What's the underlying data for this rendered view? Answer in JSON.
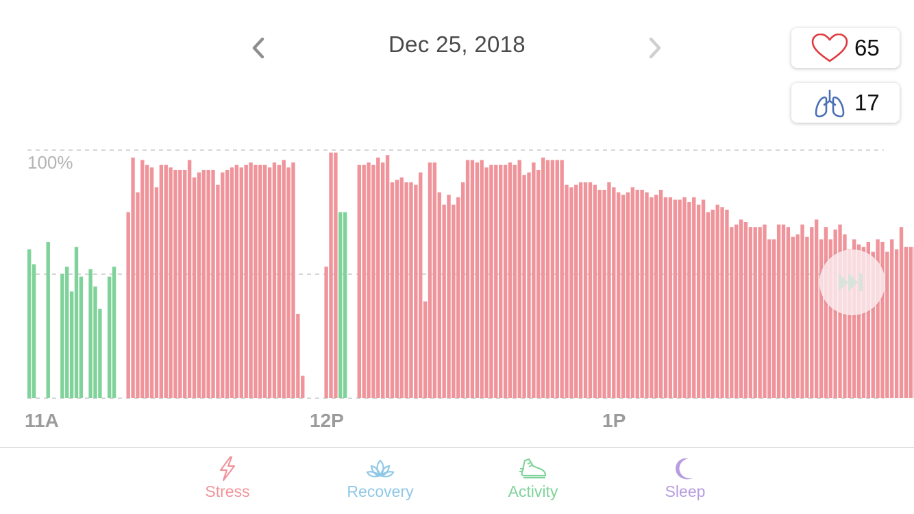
{
  "header": {
    "date": "Dec 25, 2018"
  },
  "metrics": {
    "heart_rate": {
      "icon": "heart-icon",
      "value": "65",
      "color": "#e0393e"
    },
    "breathing": {
      "icon": "lungs-icon",
      "value": "17",
      "color": "#4a6fb5"
    }
  },
  "chart_data": {
    "type": "bar",
    "y_max_label": "100%",
    "x_tick_labels": [
      {
        "label": "11A",
        "index": 0
      },
      {
        "label": "12P",
        "index": 62
      },
      {
        "label": "1P",
        "index": 124
      }
    ],
    "grid": true,
    "ylim": [
      0,
      100
    ],
    "colors": {
      "stress": "#f0949b",
      "calm": "#7fd39a"
    },
    "bars": [
      {
        "v": 60,
        "s": "calm"
      },
      {
        "v": 54,
        "s": "calm"
      },
      {
        "v": 0,
        "s": "none"
      },
      {
        "v": 0,
        "s": "none"
      },
      {
        "v": 63,
        "s": "calm"
      },
      {
        "v": 0,
        "s": "none"
      },
      {
        "v": 0,
        "s": "none"
      },
      {
        "v": 50,
        "s": "calm"
      },
      {
        "v": 53,
        "s": "calm"
      },
      {
        "v": 43,
        "s": "calm"
      },
      {
        "v": 61,
        "s": "calm"
      },
      {
        "v": 49,
        "s": "calm"
      },
      {
        "v": 0,
        "s": "none"
      },
      {
        "v": 52,
        "s": "calm"
      },
      {
        "v": 45,
        "s": "calm"
      },
      {
        "v": 36,
        "s": "calm"
      },
      {
        "v": 0,
        "s": "none"
      },
      {
        "v": 49,
        "s": "calm"
      },
      {
        "v": 53,
        "s": "calm"
      },
      {
        "v": 0,
        "s": "none"
      },
      {
        "v": 0,
        "s": "none"
      },
      {
        "v": 75,
        "s": "stress"
      },
      {
        "v": 97,
        "s": "stress"
      },
      {
        "v": 83,
        "s": "stress"
      },
      {
        "v": 96,
        "s": "stress"
      },
      {
        "v": 94,
        "s": "stress"
      },
      {
        "v": 93,
        "s": "stress"
      },
      {
        "v": 85,
        "s": "stress"
      },
      {
        "v": 94,
        "s": "stress"
      },
      {
        "v": 94,
        "s": "stress"
      },
      {
        "v": 93,
        "s": "stress"
      },
      {
        "v": 92,
        "s": "stress"
      },
      {
        "v": 92,
        "s": "stress"
      },
      {
        "v": 92,
        "s": "stress"
      },
      {
        "v": 96,
        "s": "stress"
      },
      {
        "v": 89,
        "s": "stress"
      },
      {
        "v": 91,
        "s": "stress"
      },
      {
        "v": 92,
        "s": "stress"
      },
      {
        "v": 92,
        "s": "stress"
      },
      {
        "v": 92,
        "s": "stress"
      },
      {
        "v": 86,
        "s": "stress"
      },
      {
        "v": 91,
        "s": "stress"
      },
      {
        "v": 92,
        "s": "stress"
      },
      {
        "v": 93,
        "s": "stress"
      },
      {
        "v": 94,
        "s": "stress"
      },
      {
        "v": 93,
        "s": "stress"
      },
      {
        "v": 94,
        "s": "stress"
      },
      {
        "v": 95,
        "s": "stress"
      },
      {
        "v": 94,
        "s": "stress"
      },
      {
        "v": 94,
        "s": "stress"
      },
      {
        "v": 94,
        "s": "stress"
      },
      {
        "v": 93,
        "s": "stress"
      },
      {
        "v": 95,
        "s": "stress"
      },
      {
        "v": 94,
        "s": "stress"
      },
      {
        "v": 96,
        "s": "stress"
      },
      {
        "v": 93,
        "s": "stress"
      },
      {
        "v": 95,
        "s": "stress"
      },
      {
        "v": 34,
        "s": "stress"
      },
      {
        "v": 9,
        "s": "stress"
      },
      {
        "v": 0,
        "s": "none"
      },
      {
        "v": 0,
        "s": "none"
      },
      {
        "v": 0,
        "s": "none"
      },
      {
        "v": 0,
        "s": "none"
      },
      {
        "v": 53,
        "s": "stress"
      },
      {
        "v": 99,
        "s": "stress"
      },
      {
        "v": 99,
        "s": "stress"
      },
      {
        "v": 75,
        "s": "calm"
      },
      {
        "v": 75,
        "s": "calm"
      },
      {
        "v": 0,
        "s": "none"
      },
      {
        "v": 0,
        "s": "none"
      },
      {
        "v": 94,
        "s": "stress"
      },
      {
        "v": 94,
        "s": "stress"
      },
      {
        "v": 95,
        "s": "stress"
      },
      {
        "v": 94,
        "s": "stress"
      },
      {
        "v": 97,
        "s": "stress"
      },
      {
        "v": 95,
        "s": "stress"
      },
      {
        "v": 98,
        "s": "stress"
      },
      {
        "v": 87,
        "s": "stress"
      },
      {
        "v": 88,
        "s": "stress"
      },
      {
        "v": 89,
        "s": "stress"
      },
      {
        "v": 87,
        "s": "stress"
      },
      {
        "v": 87,
        "s": "stress"
      },
      {
        "v": 86,
        "s": "stress"
      },
      {
        "v": 91,
        "s": "stress"
      },
      {
        "v": 39,
        "s": "stress"
      },
      {
        "v": 95,
        "s": "stress"
      },
      {
        "v": 95,
        "s": "stress"
      },
      {
        "v": 83,
        "s": "stress"
      },
      {
        "v": 78,
        "s": "stress"
      },
      {
        "v": 82,
        "s": "stress"
      },
      {
        "v": 78,
        "s": "stress"
      },
      {
        "v": 81,
        "s": "stress"
      },
      {
        "v": 87,
        "s": "stress"
      },
      {
        "v": 96,
        "s": "stress"
      },
      {
        "v": 96,
        "s": "stress"
      },
      {
        "v": 95,
        "s": "stress"
      },
      {
        "v": 96,
        "s": "stress"
      },
      {
        "v": 93,
        "s": "stress"
      },
      {
        "v": 94,
        "s": "stress"
      },
      {
        "v": 94,
        "s": "stress"
      },
      {
        "v": 94,
        "s": "stress"
      },
      {
        "v": 94,
        "s": "stress"
      },
      {
        "v": 95,
        "s": "stress"
      },
      {
        "v": 94,
        "s": "stress"
      },
      {
        "v": 96,
        "s": "stress"
      },
      {
        "v": 90,
        "s": "stress"
      },
      {
        "v": 91,
        "s": "stress"
      },
      {
        "v": 95,
        "s": "stress"
      },
      {
        "v": 92,
        "s": "stress"
      },
      {
        "v": 97,
        "s": "stress"
      },
      {
        "v": 96,
        "s": "stress"
      },
      {
        "v": 96,
        "s": "stress"
      },
      {
        "v": 96,
        "s": "stress"
      },
      {
        "v": 96,
        "s": "stress"
      },
      {
        "v": 86,
        "s": "stress"
      },
      {
        "v": 85,
        "s": "stress"
      },
      {
        "v": 86,
        "s": "stress"
      },
      {
        "v": 87,
        "s": "stress"
      },
      {
        "v": 87,
        "s": "stress"
      },
      {
        "v": 87,
        "s": "stress"
      },
      {
        "v": 86,
        "s": "stress"
      },
      {
        "v": 84,
        "s": "stress"
      },
      {
        "v": 84,
        "s": "stress"
      },
      {
        "v": 87,
        "s": "stress"
      },
      {
        "v": 85,
        "s": "stress"
      },
      {
        "v": 83,
        "s": "stress"
      },
      {
        "v": 82,
        "s": "stress"
      },
      {
        "v": 83,
        "s": "stress"
      },
      {
        "v": 85,
        "s": "stress"
      },
      {
        "v": 84,
        "s": "stress"
      },
      {
        "v": 84,
        "s": "stress"
      },
      {
        "v": 83,
        "s": "stress"
      },
      {
        "v": 81,
        "s": "stress"
      },
      {
        "v": 82,
        "s": "stress"
      },
      {
        "v": 84,
        "s": "stress"
      },
      {
        "v": 81,
        "s": "stress"
      },
      {
        "v": 81,
        "s": "stress"
      },
      {
        "v": 80,
        "s": "stress"
      },
      {
        "v": 80,
        "s": "stress"
      },
      {
        "v": 81,
        "s": "stress"
      },
      {
        "v": 79,
        "s": "stress"
      },
      {
        "v": 81,
        "s": "stress"
      },
      {
        "v": 78,
        "s": "stress"
      },
      {
        "v": 80,
        "s": "stress"
      },
      {
        "v": 75,
        "s": "stress"
      },
      {
        "v": 76,
        "s": "stress"
      },
      {
        "v": 78,
        "s": "stress"
      },
      {
        "v": 77,
        "s": "stress"
      },
      {
        "v": 76,
        "s": "stress"
      },
      {
        "v": 69,
        "s": "stress"
      },
      {
        "v": 70,
        "s": "stress"
      },
      {
        "v": 72,
        "s": "stress"
      },
      {
        "v": 71,
        "s": "stress"
      },
      {
        "v": 69,
        "s": "stress"
      },
      {
        "v": 69,
        "s": "stress"
      },
      {
        "v": 69,
        "s": "stress"
      },
      {
        "v": 70,
        "s": "stress"
      },
      {
        "v": 64,
        "s": "stress"
      },
      {
        "v": 64,
        "s": "stress"
      },
      {
        "v": 70,
        "s": "stress"
      },
      {
        "v": 70,
        "s": "stress"
      },
      {
        "v": 69,
        "s": "stress"
      },
      {
        "v": 65,
        "s": "stress"
      },
      {
        "v": 66,
        "s": "stress"
      },
      {
        "v": 70,
        "s": "stress"
      },
      {
        "v": 65,
        "s": "stress"
      },
      {
        "v": 69,
        "s": "stress"
      },
      {
        "v": 72,
        "s": "stress"
      },
      {
        "v": 64,
        "s": "stress"
      },
      {
        "v": 69,
        "s": "stress"
      },
      {
        "v": 64,
        "s": "stress"
      },
      {
        "v": 68,
        "s": "stress"
      },
      {
        "v": 70,
        "s": "stress"
      },
      {
        "v": 66,
        "s": "stress"
      },
      {
        "v": 60,
        "s": "stress"
      },
      {
        "v": 64,
        "s": "stress"
      },
      {
        "v": 62,
        "s": "stress"
      },
      {
        "v": 61,
        "s": "stress"
      },
      {
        "v": 63,
        "s": "stress"
      },
      {
        "v": 59,
        "s": "stress"
      },
      {
        "v": 64,
        "s": "stress"
      },
      {
        "v": 63,
        "s": "stress"
      },
      {
        "v": 59,
        "s": "stress"
      },
      {
        "v": 64,
        "s": "stress"
      },
      {
        "v": 60,
        "s": "stress"
      },
      {
        "v": 69,
        "s": "stress"
      },
      {
        "v": 61,
        "s": "stress"
      },
      {
        "v": 61,
        "s": "stress"
      },
      {
        "v": 61,
        "s": "stress"
      },
      {
        "v": 68,
        "s": "stress"
      },
      {
        "v": 60,
        "s": "stress"
      },
      {
        "v": 61,
        "s": "stress"
      },
      {
        "v": 58,
        "s": "stress"
      },
      {
        "v": 64,
        "s": "stress"
      },
      {
        "v": 64,
        "s": "stress"
      },
      {
        "v": 61,
        "s": "stress"
      },
      {
        "v": 59,
        "s": "stress"
      }
    ]
  },
  "tabs": [
    {
      "label": "Stress",
      "icon": "lightning-icon",
      "color": "#f0949b"
    },
    {
      "label": "Recovery",
      "icon": "lotus-icon",
      "color": "#8fc8e6"
    },
    {
      "label": "Activity",
      "icon": "sneaker-icon",
      "color": "#7fd39a"
    },
    {
      "label": "Sleep",
      "icon": "moon-icon",
      "color": "#b79de0"
    }
  ]
}
